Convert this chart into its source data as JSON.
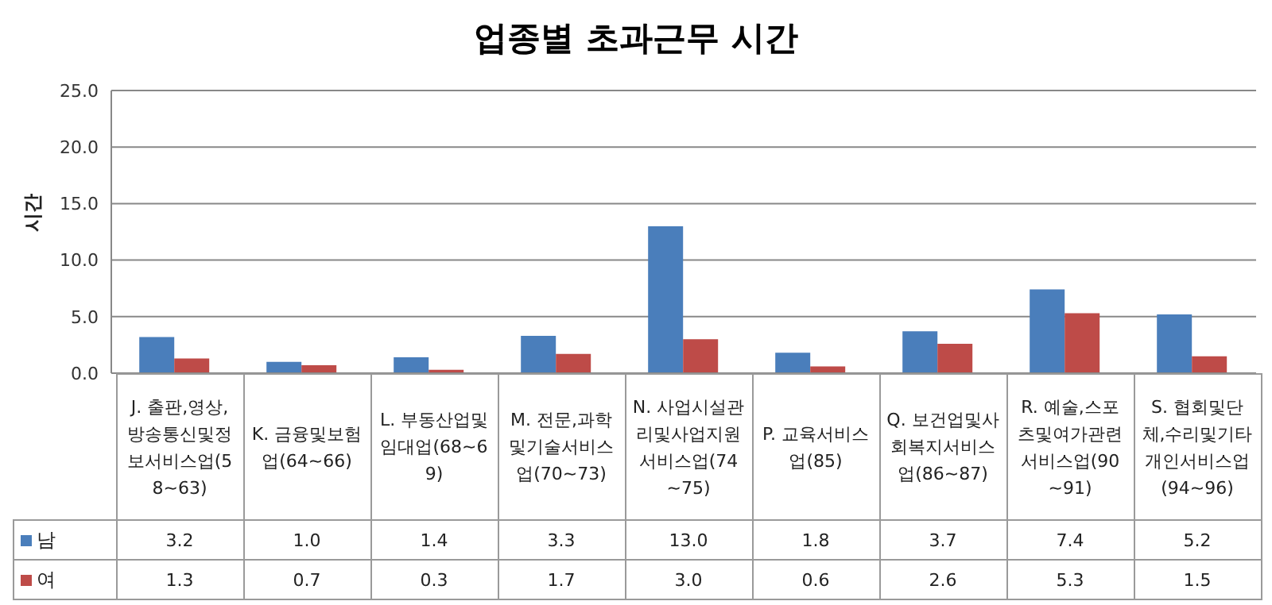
{
  "chart_data": {
    "type": "bar",
    "title": "업종별 초과근무 시간",
    "ylabel": "시간",
    "categories": [
      "J. 출판,영상,방송통신및정보서비스업(58~63)",
      "K. 금융및보험업(64~66)",
      "L. 부동산업및임대업(68~69)",
      "M. 전문,과학및기술서비스업(70~73)",
      "N. 사업시설관리및사업지원서비스업(74~75)",
      "P. 교육서비스업(85)",
      "Q. 보건업및사회복지서비스업(86~87)",
      "R. 예술,스포츠및여가관련서비스업(90~91)",
      "S. 협회및단체,수리및기타개인서비스업(94~96)"
    ],
    "series": [
      {
        "name": "남",
        "color": "#4a7ebb",
        "values": [
          3.2,
          1.0,
          1.4,
          3.3,
          13.0,
          1.8,
          3.7,
          7.4,
          5.2
        ],
        "value_labels": [
          "3.2",
          "1.0",
          "1.4",
          "3.3",
          "13.0",
          "1.8",
          "3.7",
          "7.4",
          "5.2"
        ]
      },
      {
        "name": "여",
        "color": "#be4b48",
        "values": [
          1.3,
          0.7,
          0.3,
          1.7,
          3.0,
          0.6,
          2.6,
          5.3,
          1.5
        ],
        "value_labels": [
          "1.3",
          "0.7",
          "0.3",
          "1.7",
          "3.0",
          "0.6",
          "2.6",
          "5.3",
          "1.5"
        ]
      }
    ],
    "ylim": [
      0,
      25
    ],
    "yticks": [
      {
        "value": 0,
        "label": "0.0"
      },
      {
        "value": 5,
        "label": "5.0"
      },
      {
        "value": 10,
        "label": "10.0"
      },
      {
        "value": 15,
        "label": "15.0"
      },
      {
        "value": 20,
        "label": "20.0"
      },
      {
        "value": 25,
        "label": "25.0"
      }
    ],
    "grid": "y",
    "legend": "bottom left"
  }
}
